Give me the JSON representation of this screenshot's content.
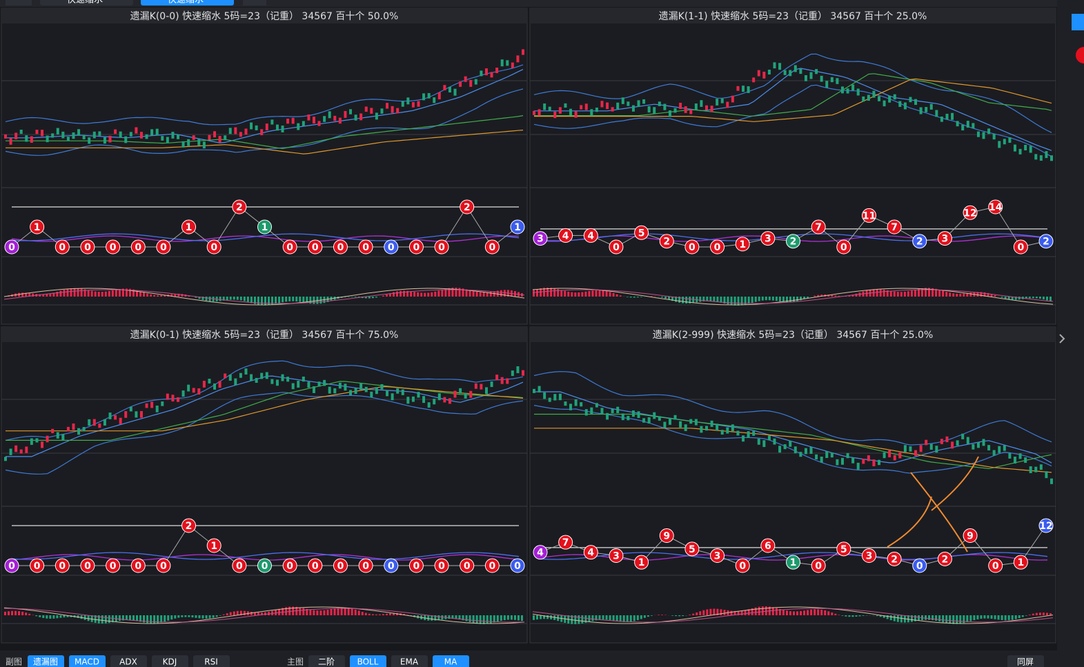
{
  "tabs": [
    "快速缩水",
    "快速缩水"
  ],
  "panels": [
    {
      "title": "遗漏K(0-0)  快速缩水  5码=23（记重）  34567  百十个  50.0%",
      "markers": [
        {
          "label": "0",
          "color": "#a51fd6"
        },
        {
          "label": "1",
          "color": "#e3101c"
        },
        {
          "label": "0",
          "color": "#e3101c"
        },
        {
          "label": "0",
          "color": "#e3101c"
        },
        {
          "label": "0",
          "color": "#e3101c"
        },
        {
          "label": "0",
          "color": "#e3101c"
        },
        {
          "label": "0",
          "color": "#e3101c"
        },
        {
          "label": "1",
          "color": "#e3101c"
        },
        {
          "label": "0",
          "color": "#e3101c"
        },
        {
          "label": "2",
          "color": "#e3101c"
        },
        {
          "label": "1",
          "color": "#1d9a6c"
        },
        {
          "label": "0",
          "color": "#e3101c"
        },
        {
          "label": "0",
          "color": "#e3101c"
        },
        {
          "label": "0",
          "color": "#e3101c"
        },
        {
          "label": "0",
          "color": "#e3101c"
        },
        {
          "label": "0",
          "color": "#3b5cf0"
        },
        {
          "label": "0",
          "color": "#e3101c"
        },
        {
          "label": "0",
          "color": "#e3101c"
        },
        {
          "label": "2",
          "color": "#e3101c"
        },
        {
          "label": "0",
          "color": "#e3101c"
        },
        {
          "label": "1",
          "color": "#3b5cf0"
        }
      ]
    },
    {
      "title": "遗漏K(1-1)  快速缩水  5码=23（记重）  34567  百十个  25.0%",
      "markers": [
        {
          "label": "3",
          "color": "#a51fd6"
        },
        {
          "label": "4",
          "color": "#e3101c"
        },
        {
          "label": "4",
          "color": "#e3101c"
        },
        {
          "label": "0",
          "color": "#e3101c"
        },
        {
          "label": "5",
          "color": "#e3101c"
        },
        {
          "label": "2",
          "color": "#e3101c"
        },
        {
          "label": "0",
          "color": "#e3101c"
        },
        {
          "label": "0",
          "color": "#e3101c"
        },
        {
          "label": "1",
          "color": "#e3101c"
        },
        {
          "label": "3",
          "color": "#e3101c"
        },
        {
          "label": "2",
          "color": "#1d9a6c"
        },
        {
          "label": "7",
          "color": "#e3101c"
        },
        {
          "label": "0",
          "color": "#e3101c"
        },
        {
          "label": "11",
          "color": "#e3101c"
        },
        {
          "label": "7",
          "color": "#e3101c"
        },
        {
          "label": "2",
          "color": "#3b5cf0"
        },
        {
          "label": "3",
          "color": "#e3101c"
        },
        {
          "label": "12",
          "color": "#e3101c"
        },
        {
          "label": "14",
          "color": "#e3101c"
        },
        {
          "label": "0",
          "color": "#e3101c"
        },
        {
          "label": "2",
          "color": "#3b5cf0"
        }
      ]
    },
    {
      "title": "遗漏K(0-1)  快速缩水  5码=23（记重）  34567  百十个  75.0%",
      "markers": [
        {
          "label": "0",
          "color": "#a51fd6"
        },
        {
          "label": "0",
          "color": "#e3101c"
        },
        {
          "label": "0",
          "color": "#e3101c"
        },
        {
          "label": "0",
          "color": "#e3101c"
        },
        {
          "label": "0",
          "color": "#e3101c"
        },
        {
          "label": "0",
          "color": "#e3101c"
        },
        {
          "label": "0",
          "color": "#e3101c"
        },
        {
          "label": "2",
          "color": "#e3101c"
        },
        {
          "label": "1",
          "color": "#e3101c"
        },
        {
          "label": "0",
          "color": "#e3101c"
        },
        {
          "label": "0",
          "color": "#1d9a6c"
        },
        {
          "label": "0",
          "color": "#e3101c"
        },
        {
          "label": "0",
          "color": "#e3101c"
        },
        {
          "label": "0",
          "color": "#e3101c"
        },
        {
          "label": "0",
          "color": "#e3101c"
        },
        {
          "label": "0",
          "color": "#3b5cf0"
        },
        {
          "label": "0",
          "color": "#e3101c"
        },
        {
          "label": "0",
          "color": "#e3101c"
        },
        {
          "label": "0",
          "color": "#e3101c"
        },
        {
          "label": "0",
          "color": "#e3101c"
        },
        {
          "label": "0",
          "color": "#3b5cf0"
        }
      ]
    },
    {
      "title": "遗漏K(2-999)  快速缩水  5码=23（记重）  34567  百十个  25.0%",
      "markers": [
        {
          "label": "4",
          "color": "#a51fd6"
        },
        {
          "label": "7",
          "color": "#e3101c"
        },
        {
          "label": "4",
          "color": "#e3101c"
        },
        {
          "label": "3",
          "color": "#e3101c"
        },
        {
          "label": "1",
          "color": "#e3101c"
        },
        {
          "label": "9",
          "color": "#e3101c"
        },
        {
          "label": "5",
          "color": "#e3101c"
        },
        {
          "label": "3",
          "color": "#e3101c"
        },
        {
          "label": "0",
          "color": "#e3101c"
        },
        {
          "label": "6",
          "color": "#e3101c"
        },
        {
          "label": "1",
          "color": "#1d9a6c"
        },
        {
          "label": "0",
          "color": "#e3101c"
        },
        {
          "label": "5",
          "color": "#e3101c"
        },
        {
          "label": "3",
          "color": "#e3101c"
        },
        {
          "label": "2",
          "color": "#e3101c"
        },
        {
          "label": "0",
          "color": "#3b5cf0"
        },
        {
          "label": "2",
          "color": "#e3101c"
        },
        {
          "label": "9",
          "color": "#e3101c"
        },
        {
          "label": "0",
          "color": "#e3101c"
        },
        {
          "label": "1",
          "color": "#e3101c"
        },
        {
          "label": "12",
          "color": "#3b5cf0"
        }
      ]
    }
  ],
  "toolbar": {
    "sub_label": "副图",
    "sub_tabs": [
      {
        "label": "遗漏图",
        "active": true
      },
      {
        "label": "MACD",
        "active": true
      },
      {
        "label": "ADX",
        "active": false
      },
      {
        "label": "KDJ",
        "active": false
      },
      {
        "label": "RSI",
        "active": false
      }
    ],
    "main_label": "主图",
    "main_tabs": [
      {
        "label": "二阶",
        "active": false
      },
      {
        "label": "BOLL",
        "active": true
      },
      {
        "label": "EMA",
        "active": false
      },
      {
        "label": "MA",
        "active": true
      }
    ],
    "right_tab": {
      "label": "同屏",
      "active": false
    }
  }
}
